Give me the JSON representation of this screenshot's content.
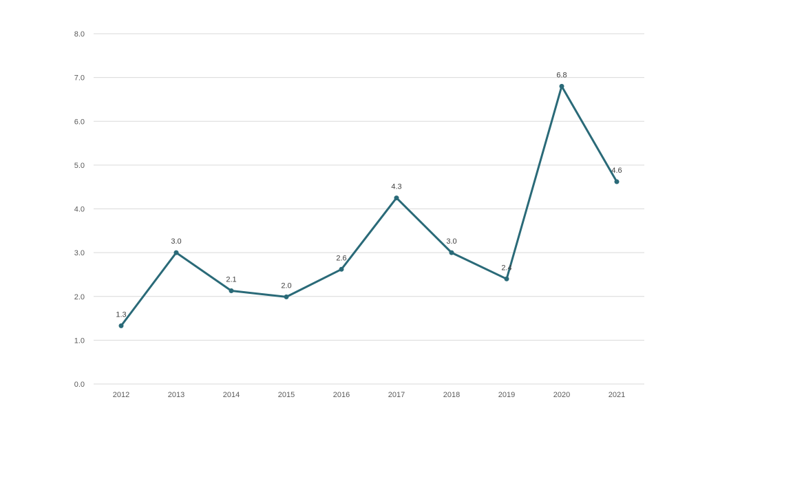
{
  "chart_data": {
    "type": "line",
    "title": "",
    "xlabel": "",
    "ylabel": "",
    "x": [
      "2012",
      "2013",
      "2014",
      "2015",
      "2016",
      "2017",
      "2018",
      "2019",
      "2020",
      "2021"
    ],
    "series": [
      {
        "values": [
          1.33,
          3.0,
          2.13,
          1.99,
          2.62,
          4.25,
          3.0,
          2.4,
          6.8,
          4.62
        ],
        "labels": [
          "1.3",
          "3.0",
          "2.1",
          "2.0",
          "2.6",
          "4.3",
          "3.0",
          "2.4",
          "6.8",
          "4.6"
        ]
      }
    ],
    "yticks": [
      "0.0",
      "1.0",
      "2.0",
      "3.0",
      "4.0",
      "5.0",
      "6.0",
      "7.0",
      "8.0"
    ],
    "ylim": [
      0,
      8
    ],
    "grid": true,
    "legend": "none",
    "colors": {
      "line": "#2a6a78",
      "grid": "#d9d9d9",
      "tick": "#595959"
    }
  }
}
